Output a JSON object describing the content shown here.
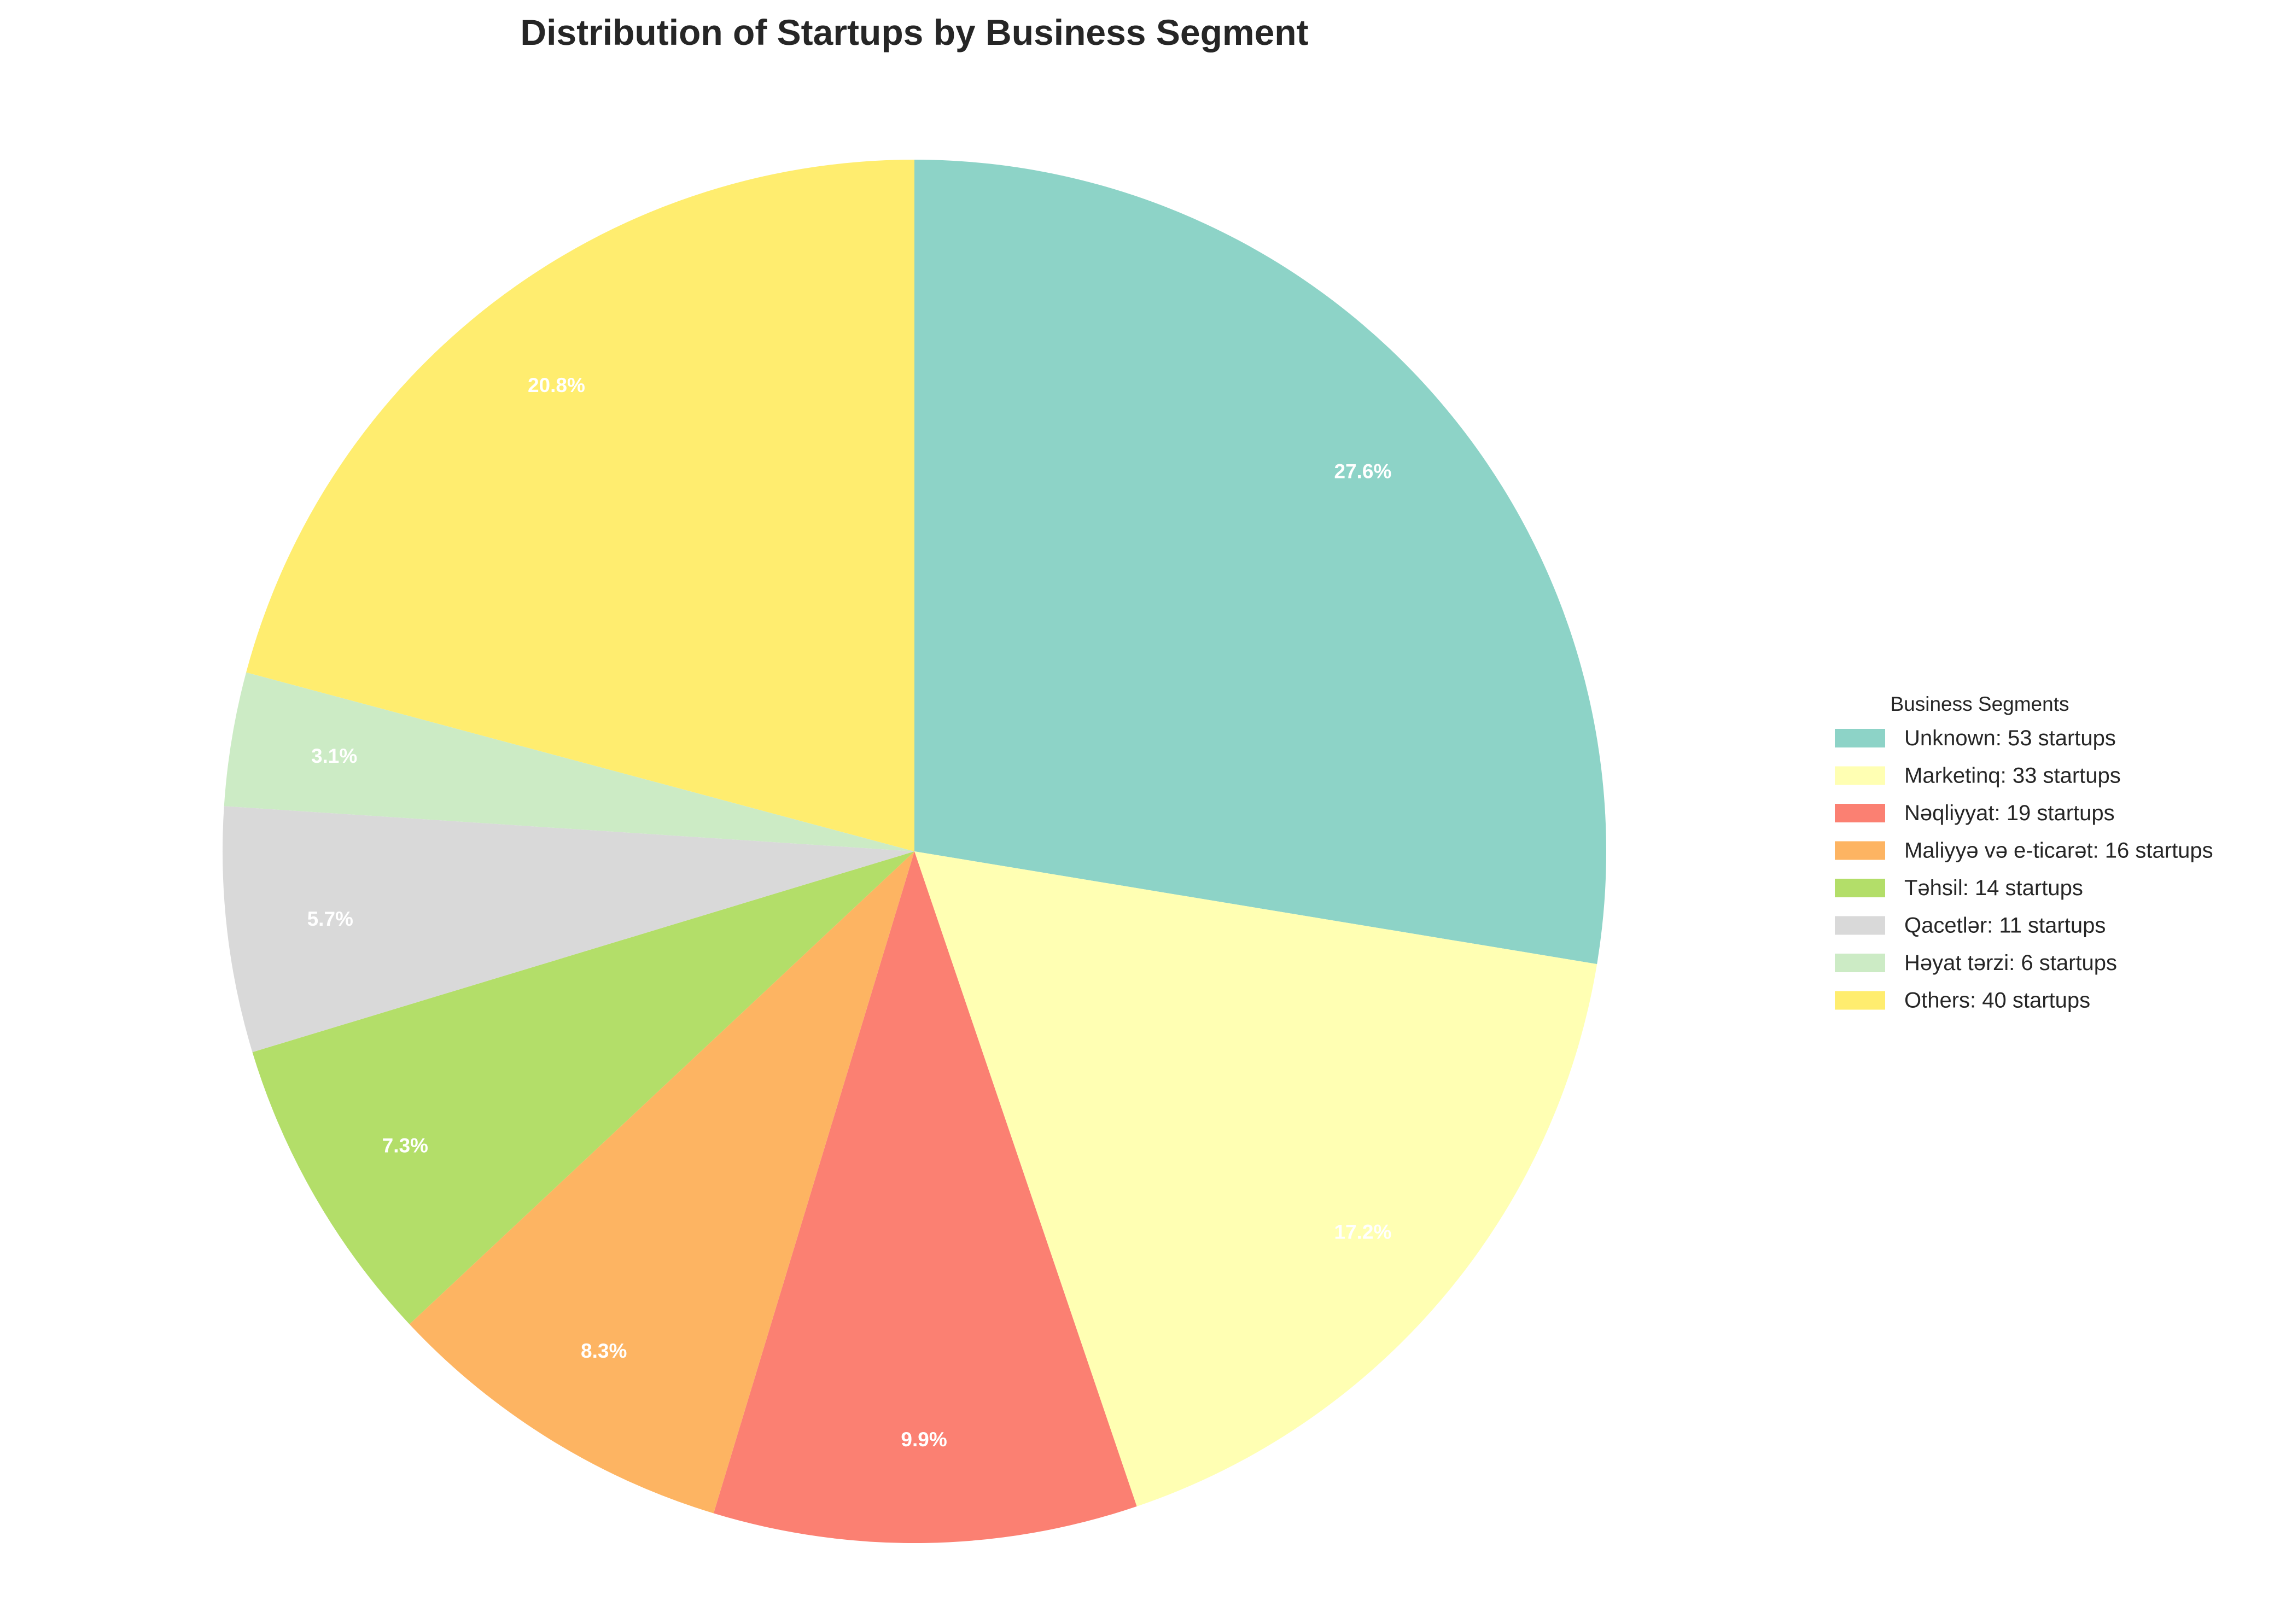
{
  "chart_data": {
    "type": "pie",
    "title": "Distribution of Startups by Business Segment",
    "start_angle_deg": 90,
    "direction": "clockwise",
    "slices": [
      {
        "label": "Unknown",
        "value": 53,
        "pct_label": "27.6%",
        "legend": "Unknown: 53 startups",
        "color": "#8dd3c7"
      },
      {
        "label": "Marketinq",
        "value": 33,
        "pct_label": "17.2%",
        "legend": "Marketinq: 33 startups",
        "color": "#ffffb3"
      },
      {
        "label": "Nəqliyyat",
        "value": 19,
        "pct_label": "9.9%",
        "legend": "Nəqliyyat: 19 startups",
        "color": "#fb8072"
      },
      {
        "label": "Maliyyə və e-ticarət",
        "value": 16,
        "pct_label": "8.3%",
        "legend": "Maliyyə və e-ticarət: 16 startups",
        "color": "#fdb462"
      },
      {
        "label": "Təhsil",
        "value": 14,
        "pct_label": "7.3%",
        "legend": "Təhsil: 14 startups",
        "color": "#b3de69"
      },
      {
        "label": "Qacetlər",
        "value": 11,
        "pct_label": "5.7%",
        "legend": "Qacetlər: 11 startups",
        "color": "#d9d9d9"
      },
      {
        "label": "Həyat tərzi",
        "value": 6,
        "pct_label": "3.1%",
        "legend": "Həyat tərzi: 6 startups",
        "color": "#ccebc5"
      },
      {
        "label": "Others",
        "value": 40,
        "pct_label": "20.8%",
        "legend": "Others: 40 startups",
        "color": "#ffed6f"
      }
    ],
    "legend": {
      "title": "Business Segments",
      "placement": "right"
    }
  }
}
